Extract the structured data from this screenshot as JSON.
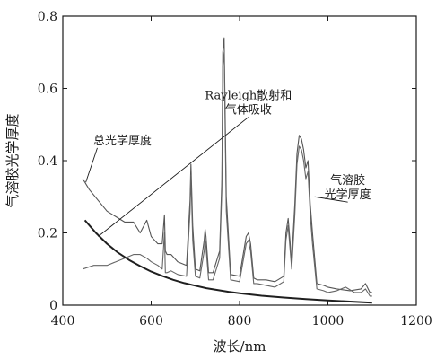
{
  "chart_data": {
    "type": "line",
    "xlabel": "波长/nm",
    "ylabel": "气溶胶光学厚度",
    "xlim": [
      400,
      1200
    ],
    "ylim": [
      0,
      0.8
    ],
    "xticks": [
      400,
      600,
      800,
      1000,
      1200
    ],
    "yticks": [
      0,
      0.2,
      0.4,
      0.6,
      0.8
    ],
    "ytick_labels": [
      "0",
      "0.2",
      "0.4",
      "0.6",
      "0.8"
    ],
    "grid": false,
    "legend": "none",
    "series": [
      {
        "key": "total",
        "color": "#555555",
        "x": [
          445,
          460,
          480,
          500,
          520,
          540,
          560,
          575,
          590,
          600,
          615,
          625,
          630,
          632,
          636,
          645,
          660,
          680,
          688,
          690,
          694,
          700,
          710,
          720,
          722,
          724,
          730,
          740,
          755,
          760,
          762,
          765,
          770,
          780,
          800,
          815,
          820,
          825,
          832,
          840,
          860,
          880,
          900,
          905,
          910,
          918,
          925,
          930,
          935,
          940,
          945,
          950,
          955,
          960,
          965,
          975,
          990,
          1000,
          1020,
          1050,
          1075,
          1085,
          1095,
          1100
        ],
        "y": [
          0.35,
          0.32,
          0.29,
          0.26,
          0.245,
          0.23,
          0.23,
          0.2,
          0.235,
          0.19,
          0.17,
          0.17,
          0.25,
          0.15,
          0.14,
          0.14,
          0.12,
          0.11,
          0.29,
          0.39,
          0.22,
          0.1,
          0.095,
          0.18,
          0.21,
          0.19,
          0.09,
          0.09,
          0.15,
          0.35,
          0.7,
          0.74,
          0.3,
          0.085,
          0.08,
          0.19,
          0.2,
          0.17,
          0.075,
          0.07,
          0.07,
          0.065,
          0.08,
          0.2,
          0.24,
          0.12,
          0.28,
          0.42,
          0.47,
          0.46,
          0.43,
          0.38,
          0.4,
          0.28,
          0.2,
          0.06,
          0.055,
          0.05,
          0.045,
          0.04,
          0.045,
          0.06,
          0.035,
          0.035
        ]
      },
      {
        "key": "aerosol",
        "color": "#666666",
        "x": [
          445,
          470,
          500,
          520,
          540,
          560,
          575,
          590,
          600,
          615,
          625,
          630,
          632,
          636,
          645,
          660,
          680,
          688,
          690,
          694,
          700,
          710,
          720,
          722,
          724,
          730,
          740,
          755,
          760,
          762,
          765,
          770,
          780,
          800,
          815,
          820,
          825,
          832,
          840,
          860,
          880,
          900,
          905,
          910,
          918,
          925,
          930,
          935,
          940,
          945,
          950,
          955,
          960,
          965,
          975,
          990,
          1000,
          1020,
          1040,
          1060,
          1075,
          1085,
          1095,
          1100
        ],
        "y": [
          0.1,
          0.11,
          0.11,
          0.12,
          0.13,
          0.14,
          0.14,
          0.13,
          0.12,
          0.11,
          0.1,
          0.2,
          0.09,
          0.09,
          0.095,
          0.085,
          0.08,
          0.26,
          0.36,
          0.18,
          0.08,
          0.075,
          0.15,
          0.18,
          0.16,
          0.07,
          0.07,
          0.13,
          0.32,
          0.66,
          0.7,
          0.26,
          0.07,
          0.065,
          0.17,
          0.18,
          0.15,
          0.06,
          0.06,
          0.055,
          0.05,
          0.065,
          0.18,
          0.22,
          0.1,
          0.25,
          0.39,
          0.44,
          0.43,
          0.4,
          0.35,
          0.37,
          0.25,
          0.17,
          0.045,
          0.04,
          0.035,
          0.04,
          0.05,
          0.035,
          0.035,
          0.045,
          0.025,
          0.025
        ]
      },
      {
        "key": "rayleigh",
        "color": "#1f1f1f",
        "x": [
          450,
          475,
          500,
          525,
          550,
          575,
          600,
          625,
          650,
          675,
          700,
          725,
          750,
          775,
          800,
          850,
          900,
          950,
          1000,
          1050,
          1100
        ],
        "y": [
          0.235,
          0.2,
          0.17,
          0.145,
          0.125,
          0.108,
          0.093,
          0.081,
          0.07,
          0.061,
          0.054,
          0.047,
          0.042,
          0.037,
          0.033,
          0.026,
          0.021,
          0.017,
          0.013,
          0.01,
          0.007
        ]
      }
    ],
    "annotations": [
      {
        "key": "rayleigh",
        "lines": [
          "Rayleigh散射和",
          "气体吸收"
        ],
        "text_xy": [
          820,
          0.57
        ],
        "target": [
          480,
          0.19
        ]
      },
      {
        "key": "total",
        "lines": [
          "总光学厚度"
        ],
        "text_xy": [
          535,
          0.445
        ],
        "target": [
          452,
          0.34
        ]
      },
      {
        "key": "aerosol",
        "lines": [
          "气溶胶",
          "光学厚度"
        ],
        "text_xy": [
          1045,
          0.335
        ],
        "target": [
          970,
          0.3
        ]
      }
    ]
  }
}
